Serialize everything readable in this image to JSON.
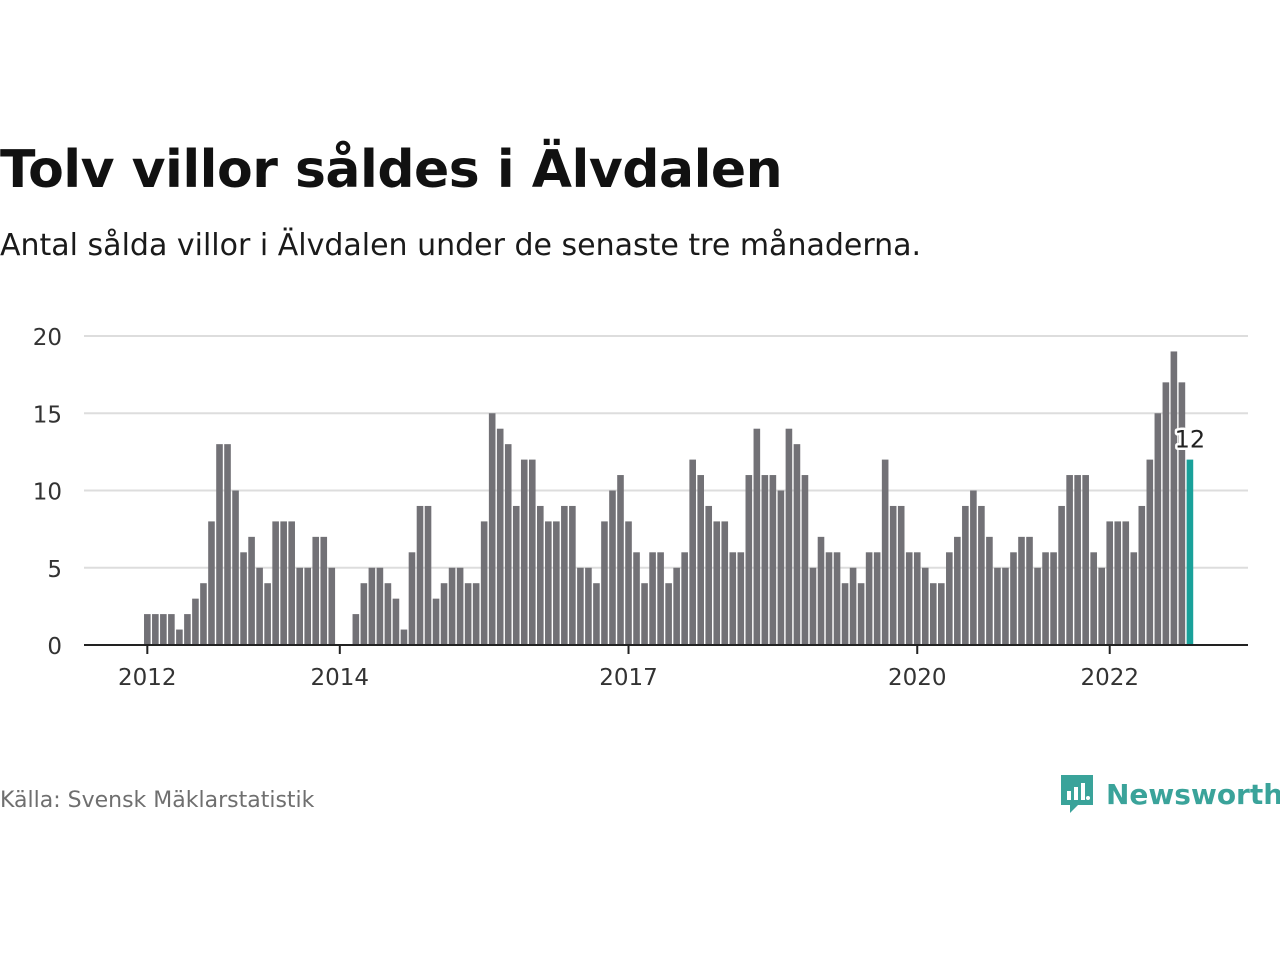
{
  "title": "Tolv villor såldes i Älvdalen",
  "subtitle": "Antal sålda villor i Älvdalen under de senaste tre månaderna.",
  "source": "Källa: Svensk Mäklarstatistik",
  "brand": "Newsworthy",
  "colors": {
    "bar": "#727176",
    "highlight": "#19a19a",
    "grid": "#dddddd",
    "axis": "#222222",
    "brand": "#3aa39a"
  },
  "chart_data": {
    "type": "bar",
    "first_month": "2011-12",
    "last_month": "2023-02",
    "values": [
      0,
      2,
      2,
      2,
      2,
      1,
      2,
      3,
      4,
      8,
      13,
      13,
      10,
      6,
      7,
      5,
      4,
      8,
      8,
      8,
      5,
      5,
      7,
      7,
      5,
      0,
      0,
      2,
      4,
      5,
      5,
      4,
      3,
      1,
      6,
      9,
      9,
      3,
      4,
      5,
      5,
      4,
      4,
      8,
      15,
      14,
      13,
      9,
      12,
      12,
      9,
      8,
      8,
      9,
      9,
      5,
      5,
      4,
      8,
      10,
      11,
      8,
      6,
      4,
      6,
      6,
      4,
      5,
      6,
      12,
      11,
      9,
      8,
      8,
      6,
      6,
      11,
      14,
      11,
      11,
      10,
      14,
      13,
      11,
      5,
      7,
      6,
      6,
      4,
      5,
      4,
      6,
      6,
      12,
      9,
      9,
      6,
      6,
      5,
      4,
      4,
      6,
      7,
      9,
      10,
      9,
      7,
      5,
      5,
      6,
      7,
      7,
      5,
      6,
      6,
      9,
      11,
      11,
      11,
      6,
      5,
      8,
      8,
      8,
      6,
      9,
      12,
      15,
      17,
      19,
      17,
      12
    ],
    "x_ticks": [
      "2012",
      "2014",
      "2017",
      "2020",
      "2022"
    ],
    "y_ticks": [
      0,
      5,
      10,
      15,
      20
    ],
    "ylim": [
      0,
      20
    ],
    "highlight_label": "12",
    "grid": true,
    "legend": "none"
  }
}
